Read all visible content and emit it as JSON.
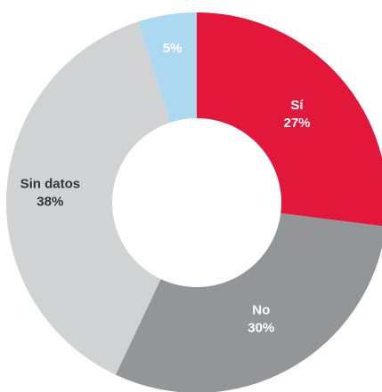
{
  "chart_data": {
    "type": "donut",
    "categories": [
      "Sí",
      "No",
      "Sin datos",
      null
    ],
    "values": [
      27,
      30,
      38,
      5
    ],
    "value_labels": [
      "27%",
      "30%",
      "38%",
      "5%"
    ],
    "colors": [
      "#e3173a",
      "#939598",
      "#d1d2d4",
      "#acd8f2"
    ]
  }
}
